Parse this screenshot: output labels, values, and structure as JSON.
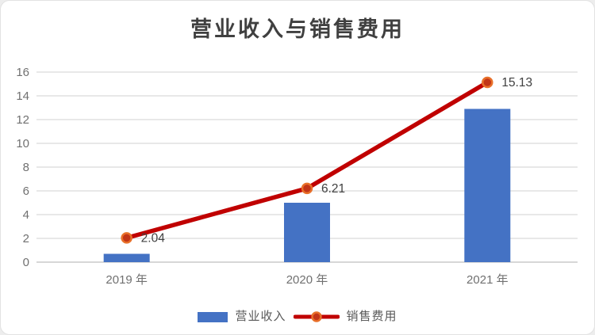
{
  "card": {
    "background": "#ffffff",
    "border_color": "#e2e2e2"
  },
  "chart_data": {
    "type": "bar+line",
    "title": "营业收入与销售费用",
    "categories": [
      "2019 年",
      "2020 年",
      "2021 年"
    ],
    "series": [
      {
        "name": "营业收入",
        "type": "bar",
        "color": "#4472C4",
        "values": [
          0.7,
          5.0,
          12.9
        ]
      },
      {
        "name": "销售费用",
        "type": "line",
        "color": "#C00000",
        "marker_fill": "#C23517",
        "marker_border": "#E8702A",
        "values": [
          2.04,
          6.21,
          15.13
        ],
        "data_labels": [
          "2.04",
          "6.21",
          "15.13"
        ]
      }
    ],
    "xlabel": "",
    "ylabel": "",
    "ylim": [
      0,
      16
    ],
    "yticks": [
      0,
      2,
      4,
      6,
      8,
      10,
      12,
      14,
      16
    ],
    "grid": true,
    "gridline_color": "#d9d9d9",
    "axis_line_color": "#bfbfbf",
    "axis_label_color": "#707070",
    "data_label_color": "#404040",
    "title_color": "#404040",
    "legend_position": "bottom",
    "legend_text_color": "#595959"
  }
}
